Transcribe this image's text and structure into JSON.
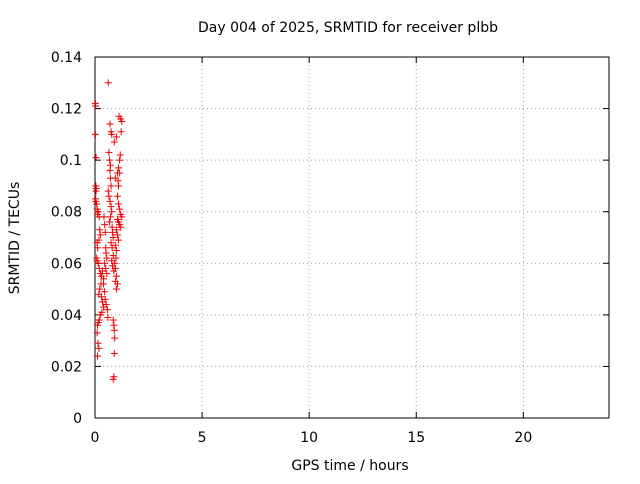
{
  "chart_data": {
    "type": "scatter",
    "title": "Day 004 of 2025, SRMTID for receiver plbb",
    "xlabel": "GPS time / hours",
    "ylabel": "SRMTID / TECUs",
    "xlim": [
      0,
      24
    ],
    "ylim": [
      0,
      0.14
    ],
    "xticks": [
      0,
      5,
      10,
      15,
      20
    ],
    "yticks": [
      0,
      0.02,
      0.04,
      0.06,
      0.08,
      0.1,
      0.12,
      0.14
    ],
    "xtick_labels": [
      "0",
      "5",
      "10",
      "15",
      "20"
    ],
    "ytick_labels": [
      "0",
      "0.02",
      "0.04",
      "0.06",
      "0.08",
      "0.1",
      "0.12",
      "0.14"
    ],
    "grid": true,
    "marker": "+",
    "color": "#ee0000",
    "series": [
      {
        "name": "SRMTID",
        "points": [
          [
            0.02,
            0.122
          ],
          [
            0.03,
            0.121
          ],
          [
            0.02,
            0.11
          ],
          [
            0.05,
            0.101
          ],
          [
            0.04,
            0.09
          ],
          [
            0.06,
            0.089
          ],
          [
            0.05,
            0.088
          ],
          [
            0.03,
            0.085
          ],
          [
            0.04,
            0.084
          ],
          [
            0.08,
            0.083
          ],
          [
            0.1,
            0.081
          ],
          [
            0.12,
            0.079
          ],
          [
            0.15,
            0.08
          ],
          [
            0.2,
            0.078
          ],
          [
            0.22,
            0.073
          ],
          [
            0.25,
            0.071
          ],
          [
            0.18,
            0.069
          ],
          [
            0.1,
            0.068
          ],
          [
            0.12,
            0.066
          ],
          [
            0.08,
            0.062
          ],
          [
            0.1,
            0.061
          ],
          [
            0.15,
            0.06
          ],
          [
            0.2,
            0.058
          ],
          [
            0.25,
            0.056
          ],
          [
            0.3,
            0.055
          ],
          [
            0.35,
            0.057
          ],
          [
            0.4,
            0.054
          ],
          [
            0.28,
            0.052
          ],
          [
            0.22,
            0.05
          ],
          [
            0.18,
            0.048
          ],
          [
            0.3,
            0.047
          ],
          [
            0.35,
            0.045
          ],
          [
            0.4,
            0.043
          ],
          [
            0.32,
            0.041
          ],
          [
            0.25,
            0.04
          ],
          [
            0.2,
            0.038
          ],
          [
            0.15,
            0.037
          ],
          [
            0.12,
            0.036
          ],
          [
            0.1,
            0.033
          ],
          [
            0.14,
            0.029
          ],
          [
            0.18,
            0.027
          ],
          [
            0.12,
            0.024
          ],
          [
            0.42,
            0.078
          ],
          [
            0.45,
            0.075
          ],
          [
            0.48,
            0.072
          ],
          [
            0.5,
            0.066
          ],
          [
            0.52,
            0.064
          ],
          [
            0.55,
            0.062
          ],
          [
            0.45,
            0.06
          ],
          [
            0.5,
            0.058
          ],
          [
            0.55,
            0.056
          ],
          [
            0.4,
            0.052
          ],
          [
            0.45,
            0.049
          ],
          [
            0.48,
            0.046
          ],
          [
            0.52,
            0.044
          ],
          [
            0.58,
            0.042
          ],
          [
            0.6,
            0.039
          ],
          [
            0.62,
            0.13
          ],
          [
            0.65,
            0.103
          ],
          [
            0.68,
            0.1
          ],
          [
            0.7,
            0.096
          ],
          [
            0.72,
            0.093
          ],
          [
            0.75,
            0.09
          ],
          [
            0.62,
            0.088
          ],
          [
            0.65,
            0.086
          ],
          [
            0.7,
            0.084
          ],
          [
            0.75,
            0.082
          ],
          [
            0.78,
            0.08
          ],
          [
            0.72,
            0.078
          ],
          [
            0.68,
            0.076
          ],
          [
            0.8,
            0.074
          ],
          [
            0.82,
            0.072
          ],
          [
            0.85,
            0.07
          ],
          [
            0.75,
            0.068
          ],
          [
            0.8,
            0.066
          ],
          [
            0.85,
            0.063
          ],
          [
            0.78,
            0.061
          ],
          [
            0.82,
            0.059
          ],
          [
            0.88,
            0.057
          ],
          [
            0.7,
            0.114
          ],
          [
            0.75,
            0.111
          ],
          [
            0.78,
            0.11
          ],
          [
            0.72,
            0.098
          ],
          [
            0.9,
            0.107
          ],
          [
            0.85,
            0.038
          ],
          [
            0.88,
            0.036
          ],
          [
            0.9,
            0.034
          ],
          [
            0.92,
            0.031
          ],
          [
            0.9,
            0.025
          ],
          [
            0.88,
            0.016
          ],
          [
            0.85,
            0.015
          ],
          [
            0.95,
            0.053
          ],
          [
            1.0,
            0.05
          ],
          [
            1.05,
            0.052
          ],
          [
            1.0,
            0.055
          ],
          [
            1.05,
            0.095
          ],
          [
            1.08,
            0.092
          ],
          [
            1.1,
            0.09
          ],
          [
            1.15,
            0.1
          ],
          [
            1.18,
            0.102
          ],
          [
            1.1,
            0.097
          ],
          [
            1.15,
            0.095
          ],
          [
            1.2,
            0.116
          ],
          [
            1.25,
            0.115
          ],
          [
            1.12,
            0.117
          ],
          [
            1.22,
            0.111
          ],
          [
            1.05,
            0.086
          ],
          [
            1.1,
            0.083
          ],
          [
            1.15,
            0.081
          ],
          [
            1.2,
            0.079
          ],
          [
            1.25,
            0.078
          ],
          [
            1.05,
            0.077
          ],
          [
            1.1,
            0.076
          ],
          [
            1.15,
            0.075
          ],
          [
            1.2,
            0.074
          ],
          [
            1.0,
            0.073
          ],
          [
            1.05,
            0.071
          ],
          [
            1.1,
            0.069
          ],
          [
            0.95,
            0.067
          ],
          [
            1.0,
            0.065
          ],
          [
            0.95,
            0.093
          ],
          [
            1.0,
            0.109
          ],
          [
            0.98,
            0.062
          ],
          [
            0.92,
            0.06
          ],
          [
            0.95,
            0.058
          ]
        ]
      }
    ]
  }
}
